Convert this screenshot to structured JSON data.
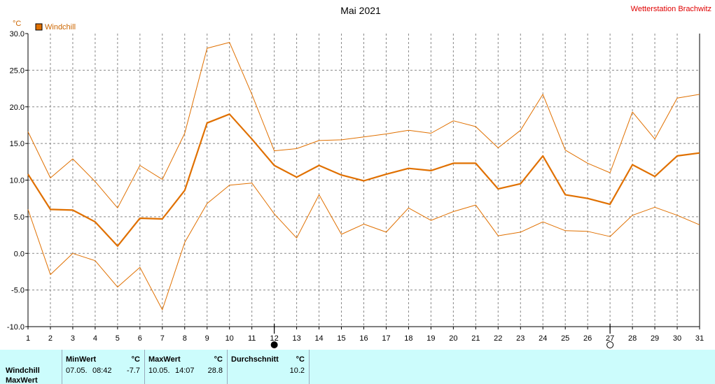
{
  "header": {
    "title": "Mai 2021",
    "station": "Wetterstation Brachwitz"
  },
  "legend": {
    "label": "Windchill",
    "color": "#e07000"
  },
  "chart_data": {
    "type": "line",
    "title": "Mai 2021",
    "ylabel": "°C",
    "xlabel": "",
    "ylim": [
      -10,
      30
    ],
    "xlim": [
      1,
      31
    ],
    "grid": true,
    "legend_position": "top-left",
    "x": [
      1,
      2,
      3,
      4,
      5,
      6,
      7,
      8,
      9,
      10,
      11,
      12,
      13,
      14,
      15,
      16,
      17,
      18,
      19,
      20,
      21,
      22,
      23,
      24,
      25,
      26,
      27,
      28,
      29,
      30,
      31
    ],
    "x_tick_labels": [
      "1",
      "2",
      "3",
      "4",
      "5",
      "6",
      "7",
      "8",
      "9",
      "10",
      "11",
      "12",
      "13",
      "14",
      "15",
      "16",
      "17",
      "18",
      "19",
      "20",
      "21",
      "22",
      "23",
      "24",
      "25",
      "26",
      "27",
      "28",
      "29",
      "30",
      "31"
    ],
    "y_tick_labels": [
      "30.0",
      "25.0",
      "20.0",
      "15.0",
      "10.0",
      "5.0",
      "0.0",
      "-5.0",
      "-10.0"
    ],
    "series": [
      {
        "name": "Windchill",
        "role": "mean",
        "values": [
          10.8,
          6.0,
          5.9,
          4.3,
          1.0,
          4.8,
          4.7,
          8.6,
          17.8,
          19.0,
          15.6,
          12.0,
          10.4,
          12.0,
          10.7,
          9.9,
          10.8,
          11.6,
          11.3,
          12.3,
          12.3,
          8.8,
          9.5,
          13.3,
          8.0,
          7.5,
          6.7,
          12.1,
          10.5,
          13.3,
          13.7
        ]
      },
      {
        "role": "max",
        "values": [
          16.6,
          10.3,
          12.9,
          9.8,
          6.2,
          12.0,
          10.1,
          16.4,
          28.0,
          28.8,
          21.7,
          14.0,
          14.3,
          15.4,
          15.5,
          15.9,
          16.3,
          16.8,
          16.4,
          18.1,
          17.3,
          14.4,
          16.8,
          21.7,
          14.1,
          12.3,
          11.0,
          19.3,
          15.6,
          21.2,
          21.7
        ]
      },
      {
        "role": "min",
        "values": [
          6.0,
          -2.9,
          0.0,
          -1.0,
          -4.6,
          -1.9,
          -7.7,
          1.5,
          6.8,
          9.3,
          9.6,
          5.4,
          2.1,
          8.0,
          2.6,
          4.0,
          2.9,
          6.2,
          4.5,
          5.7,
          6.6,
          2.4,
          2.9,
          4.3,
          3.1,
          3.0,
          2.3,
          5.2,
          6.3,
          5.2,
          3.9
        ]
      }
    ],
    "moon_phases": [
      {
        "day": 12,
        "phase": "new-moon"
      },
      {
        "day": 27,
        "phase": "full-moon"
      }
    ]
  },
  "stats": {
    "row_label": "Windchill",
    "row_label_2": "MaxWert",
    "min": {
      "header": "MinWert",
      "unit": "°C",
      "date": "07.05.",
      "time": "08:42",
      "value": "-7.7"
    },
    "max": {
      "header": "MaxWert",
      "unit": "°C",
      "date": "10.05.",
      "time": "14:07",
      "value": "28.8"
    },
    "avg": {
      "header": "Durchschnitt",
      "unit": "°C",
      "value": "10.2"
    }
  }
}
